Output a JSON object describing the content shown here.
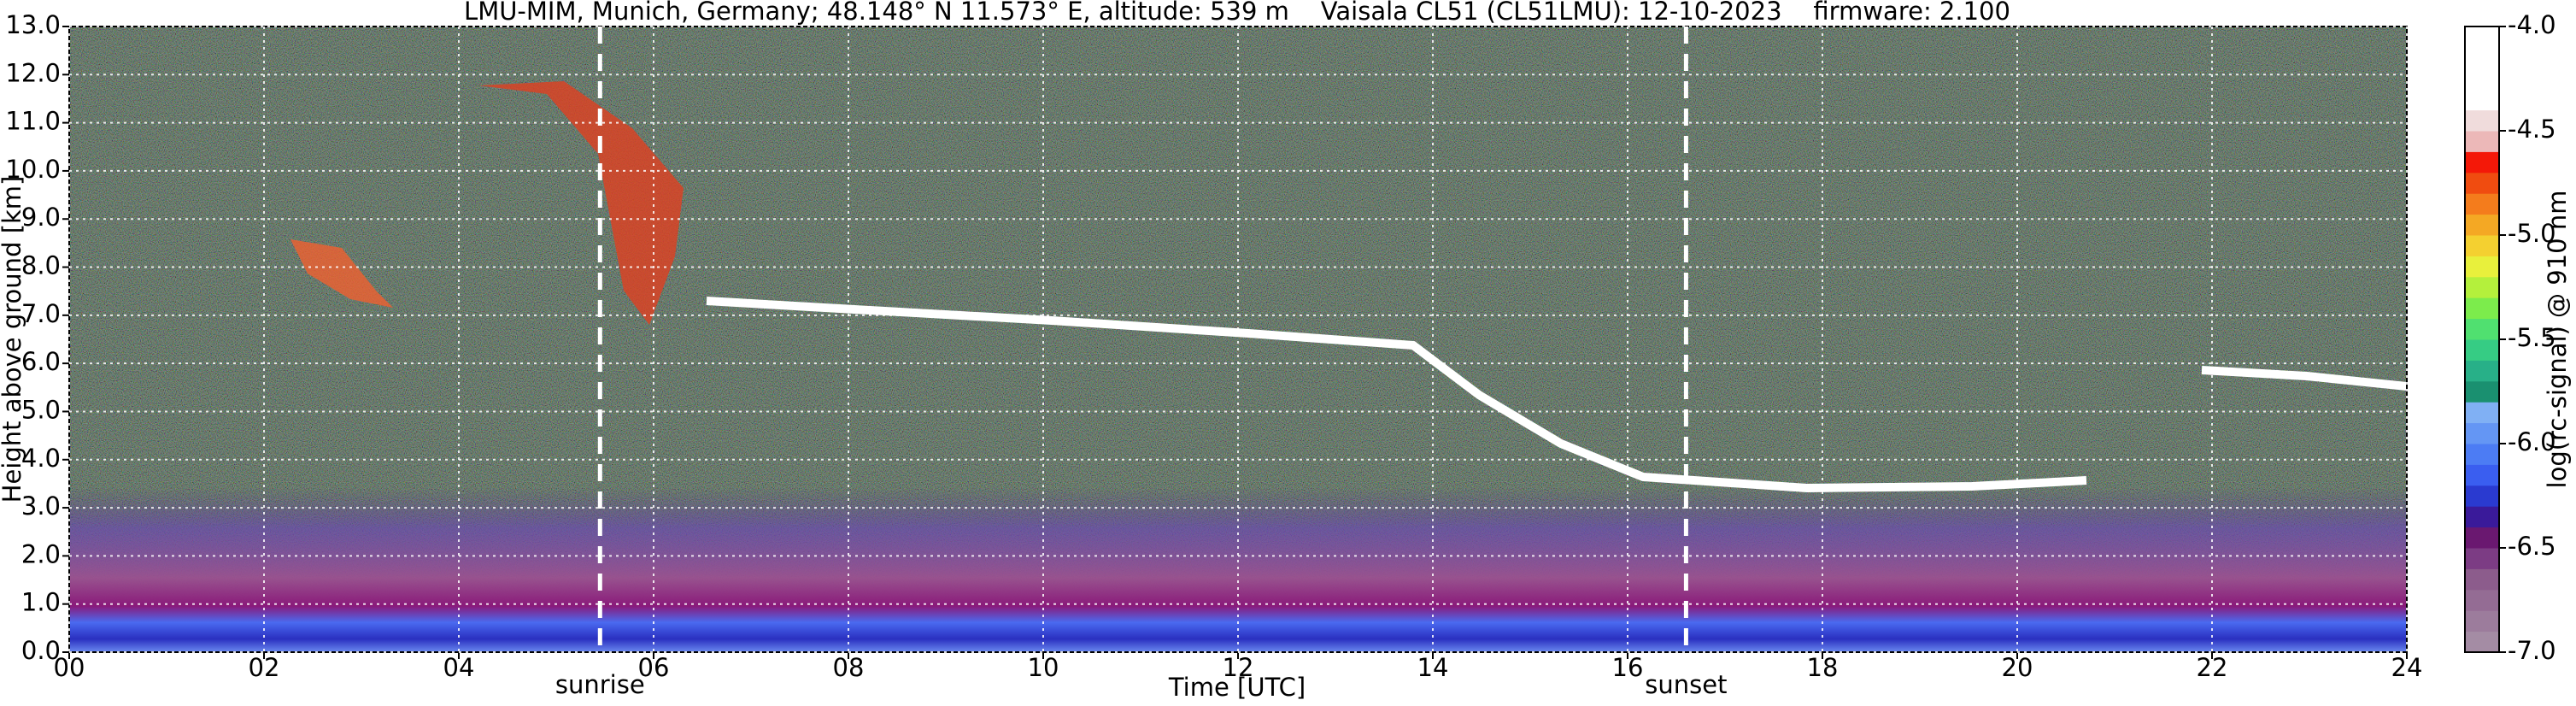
{
  "chart_data": {
    "type": "heatmap",
    "title": "LMU-MIM, Munich, Germany; 48.148° N 11.573° E, altitude: 539 m    Vaisala CL51 (CL51LMU): 12-10-2023    firmware: 2.100",
    "xlabel": "Time [UTC]",
    "ylabel": "Height above ground [km]",
    "xlim": [
      0,
      24
    ],
    "xticks": [
      {
        "value": 0,
        "label": "00"
      },
      {
        "value": 2,
        "label": "02"
      },
      {
        "value": 4,
        "label": "04"
      },
      {
        "value": 6,
        "label": "06"
      },
      {
        "value": 8,
        "label": "08"
      },
      10,
      12,
      14,
      16,
      18,
      20,
      22,
      24
    ],
    "ylim": [
      0,
      13
    ],
    "yticks": [
      {
        "value": 0,
        "label": "0.0"
      },
      {
        "value": 1,
        "label": "1.0"
      },
      {
        "value": 2,
        "label": "2.0"
      },
      {
        "value": 3,
        "label": "3.0"
      },
      {
        "value": 4,
        "label": "4.0"
      },
      {
        "value": 5,
        "label": "5.0"
      },
      {
        "value": 6,
        "label": "6.0"
      },
      {
        "value": 7,
        "label": "7.0"
      },
      {
        "value": 8,
        "label": "8.0"
      },
      {
        "value": 9,
        "label": "9.0"
      },
      {
        "value": 10,
        "label": "10.0"
      },
      {
        "value": 11,
        "label": "11.0"
      },
      {
        "value": 12,
        "label": "12.0"
      },
      {
        "value": 13,
        "label": "13.0"
      }
    ],
    "grid": true,
    "colorbar": {
      "label": "log(rc-signal) @ 910 nm",
      "clim": [
        -7,
        -4
      ],
      "ticks": [
        {
          "value": -7,
          "label": "-7.0"
        },
        {
          "value": -6.5,
          "label": "-6.5"
        },
        {
          "value": -6,
          "label": "-6.0"
        },
        {
          "value": -5.5,
          "label": "-5.5"
        },
        {
          "value": -5,
          "label": "-5.0"
        },
        {
          "value": -4.5,
          "label": "-4.5"
        },
        {
          "value": -4,
          "label": "-4.0"
        }
      ],
      "colors": [
        "#a48ca4",
        "#9c7c9c",
        "#946c94",
        "#8c5c8c",
        "#7c3c84",
        "#6a1870",
        "#3a1a9a",
        "#2a3ad0",
        "#3a5ef0",
        "#4c7cf4",
        "#6496f4",
        "#80b0f4",
        "#1a9070",
        "#28b088",
        "#36cc84",
        "#50e070",
        "#7cec4c",
        "#b4f03c",
        "#e8f03c",
        "#f4d030",
        "#f4a824",
        "#f47c1c",
        "#f04c10",
        "#f41808",
        "#ecb8b8",
        "#f0dcdc",
        "#ffffff",
        "#ffffff",
        "#ffffff",
        "#ffffff"
      ]
    },
    "annotations": [
      {
        "text": "sunrise",
        "x": 5.45
      },
      {
        "text": "sunset",
        "x": 16.6
      }
    ]
  }
}
